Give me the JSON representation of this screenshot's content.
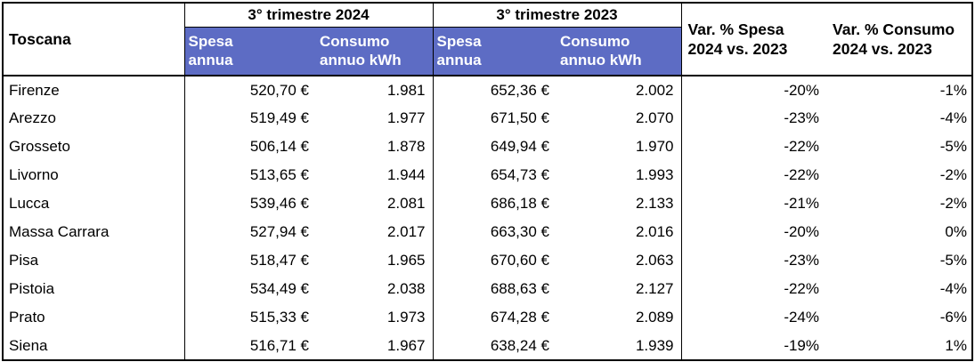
{
  "table": {
    "region_label": "Toscana",
    "periods": [
      {
        "title": "3° trimestre 2024",
        "spesa_header_line1": "Spesa",
        "spesa_header_line2": "annua",
        "consumo_header_line1": "Consumo",
        "consumo_header_line2": "annuo kWh"
      },
      {
        "title": "3° trimestre 2023",
        "spesa_header_line1": "Spesa",
        "spesa_header_line2": "annua",
        "consumo_header_line1": "Consumo",
        "consumo_header_line2": "annuo kWh"
      }
    ],
    "var_columns": [
      {
        "line1": "Var. % Spesa",
        "line2": "2024 vs. 2023"
      },
      {
        "line1": "Var. % Consumo",
        "line2": "2024 vs. 2023"
      }
    ],
    "rows": [
      {
        "province": "Firenze",
        "spesa_2024": "520,70 €",
        "consumo_2024": "1.981",
        "spesa_2023": "652,36 €",
        "consumo_2023": "2.002",
        "var_spesa": "-20%",
        "var_consumo": "-1%"
      },
      {
        "province": "Arezzo",
        "spesa_2024": "519,49 €",
        "consumo_2024": "1.977",
        "spesa_2023": "671,50 €",
        "consumo_2023": "2.070",
        "var_spesa": "-23%",
        "var_consumo": "-4%"
      },
      {
        "province": "Grosseto",
        "spesa_2024": "506,14 €",
        "consumo_2024": "1.878",
        "spesa_2023": "649,94 €",
        "consumo_2023": "1.970",
        "var_spesa": "-22%",
        "var_consumo": "-5%"
      },
      {
        "province": "Livorno",
        "spesa_2024": "513,65 €",
        "consumo_2024": "1.944",
        "spesa_2023": "654,73 €",
        "consumo_2023": "1.993",
        "var_spesa": "-22%",
        "var_consumo": "-2%"
      },
      {
        "province": "Lucca",
        "spesa_2024": "539,46 €",
        "consumo_2024": "2.081",
        "spesa_2023": "686,18 €",
        "consumo_2023": "2.133",
        "var_spesa": "-21%",
        "var_consumo": "-2%"
      },
      {
        "province": "Massa Carrara",
        "spesa_2024": "527,94 €",
        "consumo_2024": "2.017",
        "spesa_2023": "663,30 €",
        "consumo_2023": "2.016",
        "var_spesa": "-20%",
        "var_consumo": "0%"
      },
      {
        "province": "Pisa",
        "spesa_2024": "518,47 €",
        "consumo_2024": "1.965",
        "spesa_2023": "670,60 €",
        "consumo_2023": "2.063",
        "var_spesa": "-23%",
        "var_consumo": "-5%"
      },
      {
        "province": "Pistoia",
        "spesa_2024": "534,49 €",
        "consumo_2024": "2.038",
        "spesa_2023": "688,63 €",
        "consumo_2023": "2.127",
        "var_spesa": "-22%",
        "var_consumo": "-4%"
      },
      {
        "province": "Prato",
        "spesa_2024": "515,33 €",
        "consumo_2024": "1.973",
        "spesa_2023": "674,28 €",
        "consumo_2023": "2.089",
        "var_spesa": "-24%",
        "var_consumo": "-6%"
      },
      {
        "province": "Siena",
        "spesa_2024": "516,71 €",
        "consumo_2024": "1.967",
        "spesa_2023": "638,24 €",
        "consumo_2023": "1.939",
        "var_spesa": "-19%",
        "var_consumo": "1%"
      }
    ],
    "colors": {
      "header_band_background": "#5D6CC4",
      "header_band_text": "#FFFFFF",
      "border_color": "#000000",
      "text_color": "#000000",
      "background": "#FFFFFF"
    }
  }
}
